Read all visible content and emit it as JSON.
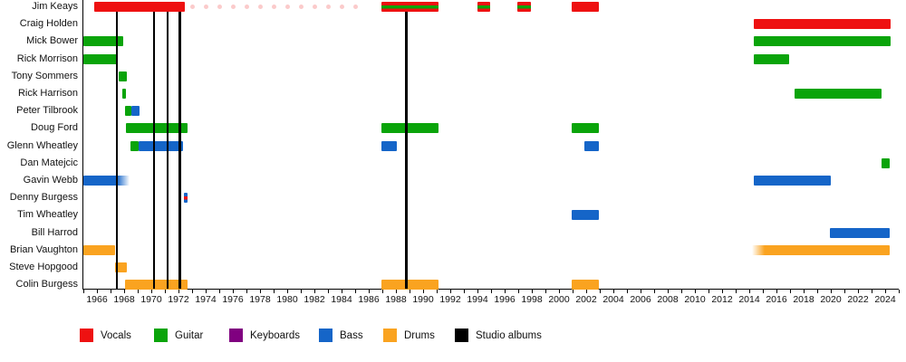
{
  "chart_data": {
    "type": "timeline",
    "description": "Band line-up timeline: colored bars show each member's tenure per instrument; black vertical lines mark studio albums",
    "x_axis": {
      "start_year": 1965,
      "end_year": 2025,
      "tick_step": 1,
      "first_label": 1966,
      "last_label": 2024,
      "label_step": 2
    },
    "roles": {
      "vocals": "#ee1111",
      "guitar": "#0aa40a",
      "keyboards": "#800080",
      "bass": "#1565c8",
      "drums": "#faa320",
      "album": "#000000"
    },
    "occasional_dot_color": "rgba(238,17,17,0.22)",
    "legend": [
      {
        "id": "vocals",
        "label": "Vocals"
      },
      {
        "id": "guitar",
        "label": "Guitar"
      },
      {
        "id": "keyboards",
        "label": "Keyboards"
      },
      {
        "id": "bass",
        "label": "Bass"
      },
      {
        "id": "drums",
        "label": "Drums"
      },
      {
        "id": "album",
        "label": "Studio albums"
      }
    ],
    "album_line_years": [
      1967.45,
      1970.2,
      1971.2,
      1972.1,
      1988.75
    ],
    "members": [
      {
        "name": "Jim Keays",
        "bars": [
          {
            "from": 1965.8,
            "to": 1972.45,
            "role": "vocals"
          },
          {
            "from": 1986.9,
            "to": 1991.1,
            "role": "vocals",
            "stripe": "guitar"
          },
          {
            "from": 1994.0,
            "to": 1994.9,
            "role": "vocals",
            "stripe": "guitar"
          },
          {
            "from": 1996.9,
            "to": 1997.9,
            "role": "vocals",
            "stripe": "guitar"
          },
          {
            "from": 2000.9,
            "to": 2002.95,
            "role": "vocals"
          }
        ],
        "dots": {
          "from": 1973,
          "to": 1985,
          "step": 1
        }
      },
      {
        "name": "Craig Holden",
        "bars": [
          {
            "from": 2014.3,
            "to": 2024.4,
            "role": "vocals"
          }
        ]
      },
      {
        "name": "Mick Bower",
        "bars": [
          {
            "from": 1965.0,
            "to": 1967.95,
            "role": "guitar"
          },
          {
            "from": 2014.3,
            "to": 2024.4,
            "role": "guitar"
          }
        ]
      },
      {
        "name": "Rick Morrison",
        "bars": [
          {
            "from": 1965.0,
            "to": 1967.55,
            "role": "guitar"
          },
          {
            "from": 2014.3,
            "to": 2016.9,
            "role": "guitar"
          }
        ]
      },
      {
        "name": "Tony Sommers",
        "bars": [
          {
            "from": 1967.6,
            "to": 1968.2,
            "role": "guitar"
          }
        ]
      },
      {
        "name": "Rick Harrison",
        "bars": [
          {
            "from": 1967.85,
            "to": 1968.1,
            "role": "guitar"
          },
          {
            "from": 2017.35,
            "to": 2023.75,
            "role": "guitar"
          }
        ]
      },
      {
        "name": "Peter Tilbrook",
        "bars": [
          {
            "from": 1968.05,
            "to": 1968.55,
            "role": "guitar"
          },
          {
            "from": 1968.55,
            "to": 1969.15,
            "role": "bass"
          }
        ]
      },
      {
        "name": "Doug Ford",
        "bars": [
          {
            "from": 1968.15,
            "to": 1972.65,
            "role": "guitar"
          },
          {
            "from": 1986.9,
            "to": 1991.1,
            "role": "guitar"
          },
          {
            "from": 2000.95,
            "to": 2002.95,
            "role": "guitar"
          }
        ]
      },
      {
        "name": "Glenn Wheatley",
        "bars": [
          {
            "from": 1968.45,
            "to": 1969.05,
            "role": "guitar"
          },
          {
            "from": 1969.05,
            "to": 1972.35,
            "role": "bass"
          },
          {
            "from": 1986.9,
            "to": 1988.05,
            "role": "bass"
          },
          {
            "from": 2001.85,
            "to": 2002.95,
            "role": "bass"
          }
        ]
      },
      {
        "name": "Dan Matejcic",
        "bars": [
          {
            "from": 2023.75,
            "to": 2024.3,
            "role": "guitar"
          }
        ]
      },
      {
        "name": "Gavin Webb",
        "bars": [
          {
            "from": 1965.0,
            "to": 1968.4,
            "role": "bass",
            "fade": "right"
          },
          {
            "from": 2014.3,
            "to": 2020.0,
            "role": "bass"
          }
        ]
      },
      {
        "name": "Denny Burgess",
        "bars": [
          {
            "from": 1972.4,
            "to": 1972.65,
            "role": "bass",
            "stripe": "vocals"
          }
        ]
      },
      {
        "name": "Tim Wheatley",
        "bars": [
          {
            "from": 2000.95,
            "to": 2002.95,
            "role": "bass"
          }
        ]
      },
      {
        "name": "Bill Harrod",
        "bars": [
          {
            "from": 2019.95,
            "to": 2024.3,
            "role": "bass"
          }
        ]
      },
      {
        "name": "Brian Vaughton",
        "bars": [
          {
            "from": 1965.0,
            "to": 1967.35,
            "role": "drums"
          },
          {
            "from": 2014.2,
            "to": 2024.3,
            "role": "drums",
            "fade": "left"
          }
        ]
      },
      {
        "name": "Steve Hopgood",
        "bars": [
          {
            "from": 1967.3,
            "to": 1968.2,
            "role": "drums"
          }
        ]
      },
      {
        "name": "Colin Burgess",
        "bars": [
          {
            "from": 1968.05,
            "to": 1972.65,
            "role": "drums"
          },
          {
            "from": 1986.9,
            "to": 1991.1,
            "role": "drums"
          },
          {
            "from": 2000.95,
            "to": 2002.95,
            "role": "drums"
          }
        ]
      }
    ]
  }
}
